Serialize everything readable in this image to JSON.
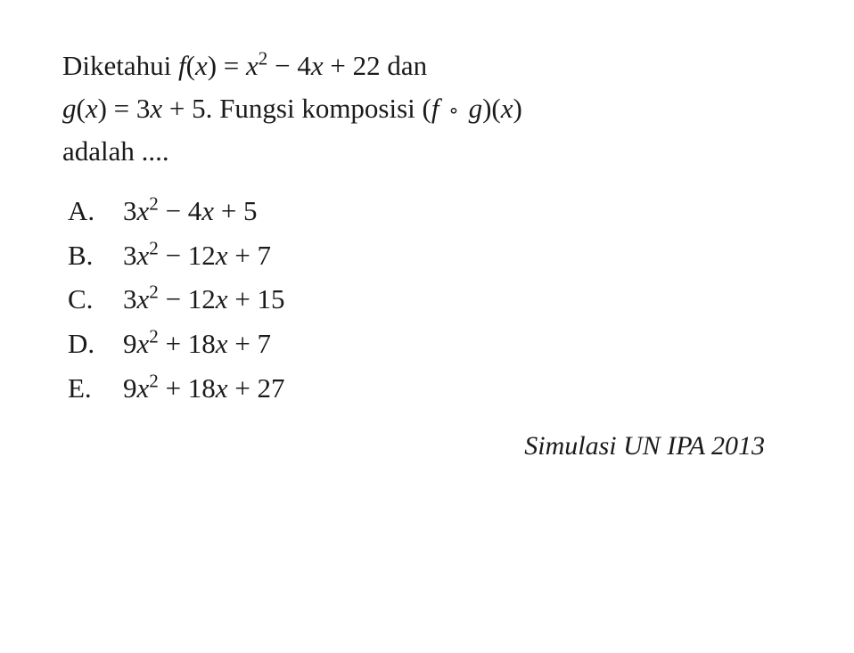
{
  "question": {
    "line1_pre": "Diketahui ",
    "line1_fx": "f",
    "line1_fx_paren": "(",
    "line1_fx_var": "x",
    "line1_fx_close": ") = ",
    "line1_x2var": "x",
    "line1_x2exp": "2",
    "line1_mid": " − 4",
    "line1_x": "x",
    "line1_end": " + 22 dan",
    "line2_gx": "g",
    "line2_gx_paren": "(",
    "line2_gx_var": "x",
    "line2_gx_close": ") = 3",
    "line2_x": "x",
    "line2_plus5": " + 5. Fungsi komposisi (",
    "line2_f": "f",
    "line2_compose": "∘",
    "line2_g": "g",
    "line2_close": ")(",
    "line2_xvar": "x",
    "line2_final": ")",
    "line3": "adalah ...."
  },
  "options": [
    {
      "letter": "A.",
      "coeff1": "3",
      "var1": "x",
      "exp1": "2",
      "mid": " − 4",
      "var2": "x",
      "end": " + 5"
    },
    {
      "letter": "B.",
      "coeff1": "3",
      "var1": "x",
      "exp1": "2",
      "mid": " − 12",
      "var2": "x",
      "end": " + 7"
    },
    {
      "letter": "C.",
      "coeff1": "3",
      "var1": "x",
      "exp1": "2",
      "mid": " − 12",
      "var2": "x",
      "end": " + 15"
    },
    {
      "letter": "D.",
      "coeff1": "9",
      "var1": "x",
      "exp1": "2",
      "mid": " + 18",
      "var2": "x",
      "end": " + 7"
    },
    {
      "letter": "E.",
      "coeff1": "9",
      "var1": "x",
      "exp1": "2",
      "mid": " + 18",
      "var2": "x",
      "end": " + 27"
    }
  ],
  "source": "Simulasi UN IPA 2013",
  "colors": {
    "background": "#ffffff",
    "text": "#1a1a1a"
  },
  "typography": {
    "body_fontsize": 31,
    "source_fontsize": 30,
    "font_family": "Georgia, Times New Roman, serif"
  }
}
